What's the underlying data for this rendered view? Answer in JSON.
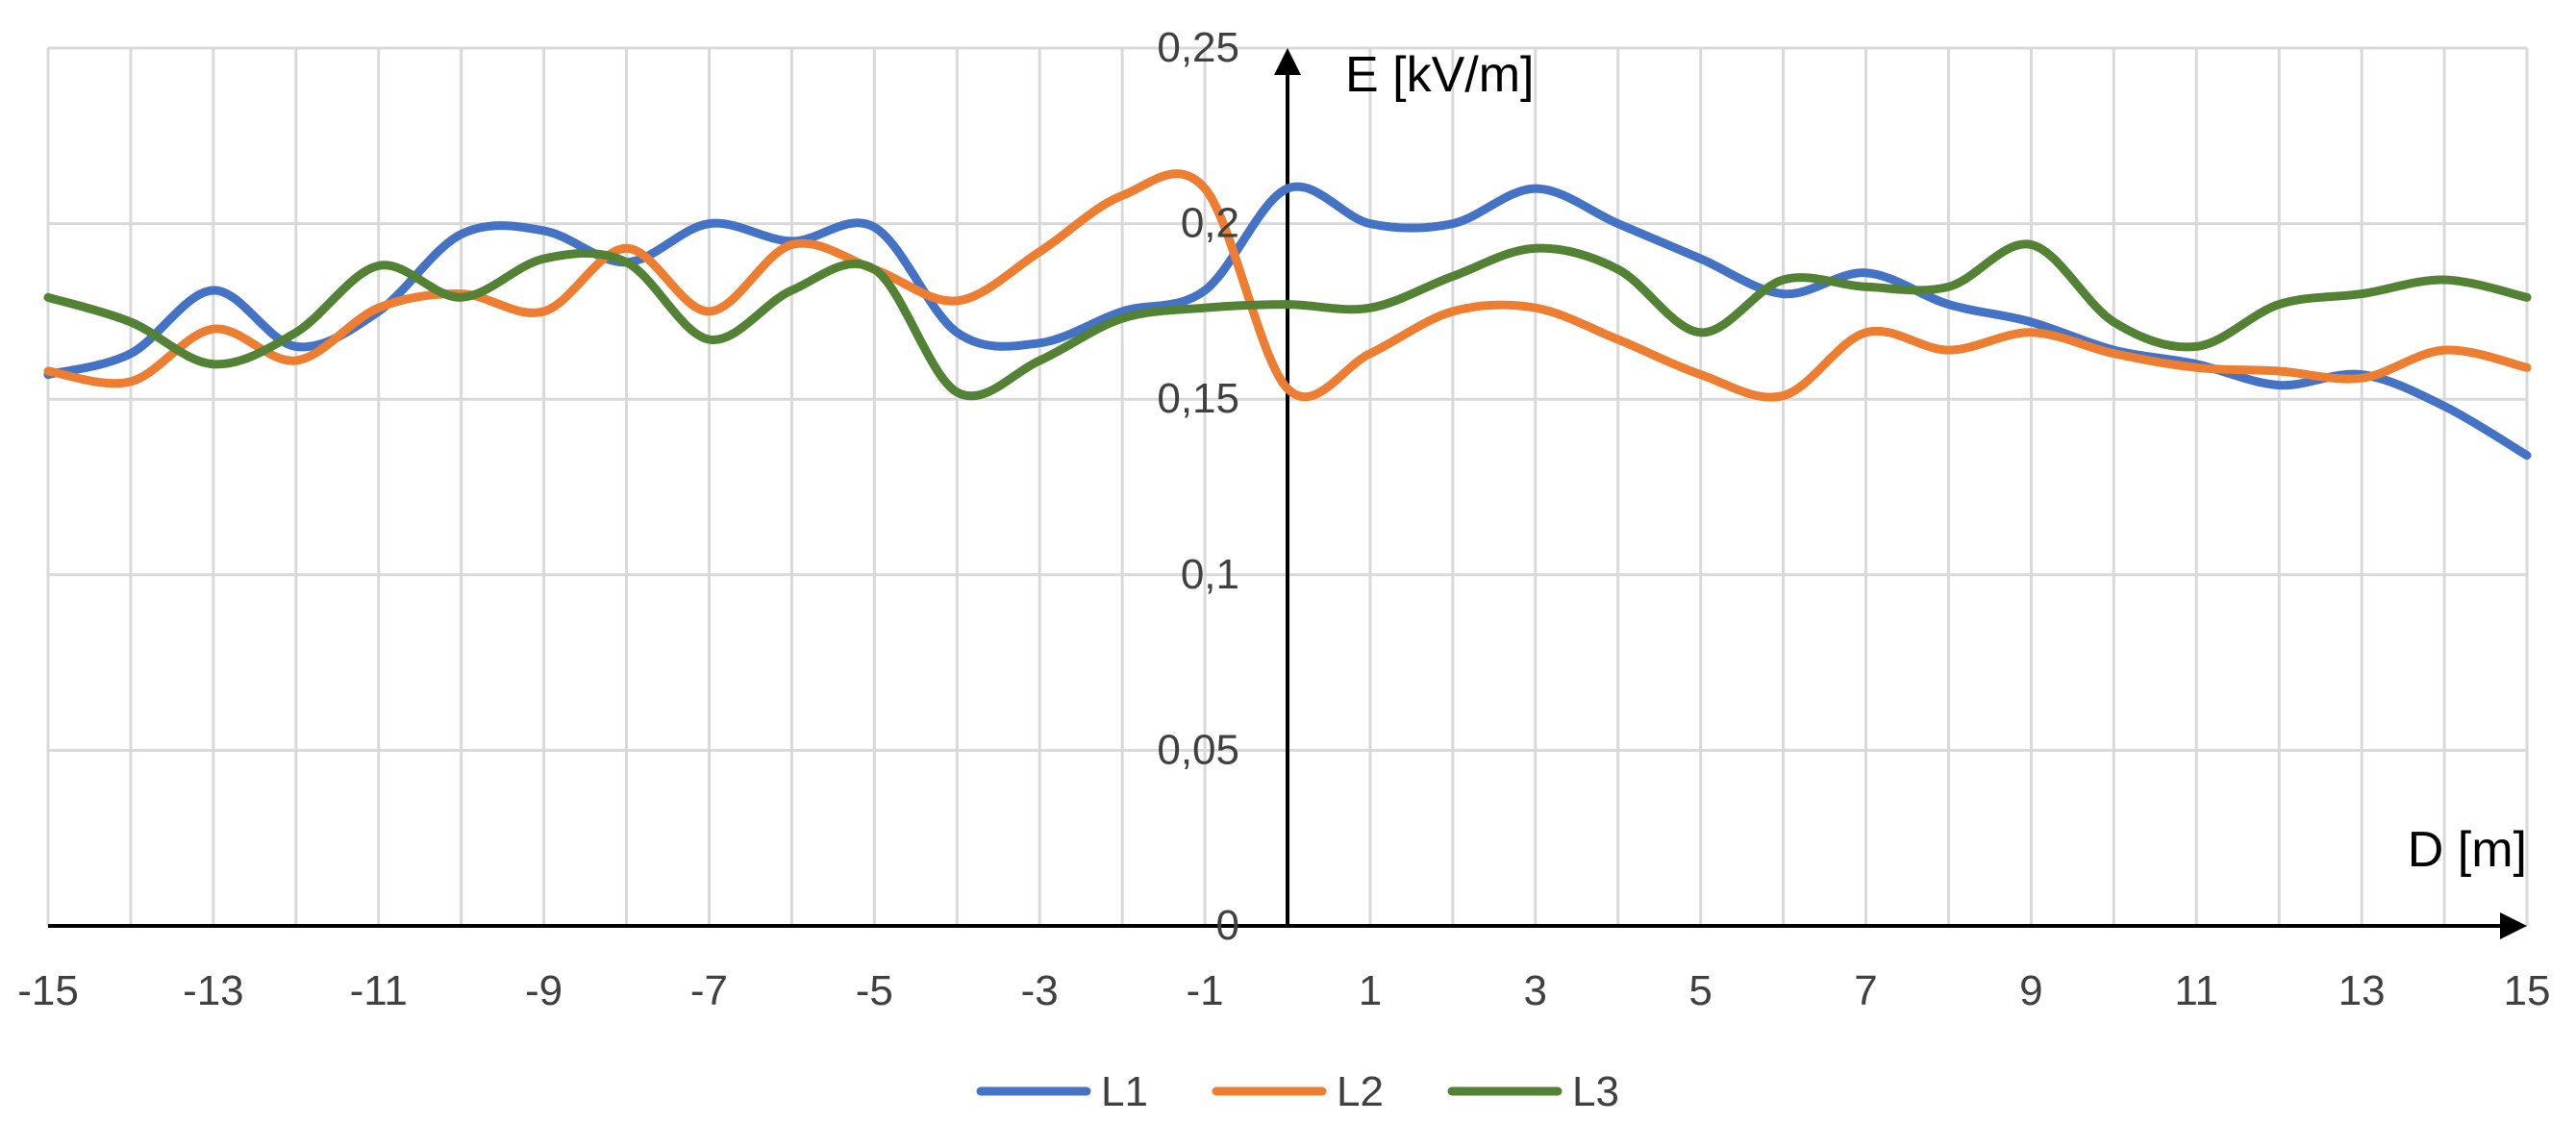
{
  "chart_data": {
    "type": "line",
    "title": "",
    "xlabel": "D [m]",
    "ylabel": "E [kV/m]",
    "xlim": [
      -15,
      15
    ],
    "ylim": [
      0,
      0.25
    ],
    "xticks": [
      -15,
      -13,
      -11,
      -9,
      -7,
      -5,
      -3,
      -1,
      1,
      3,
      5,
      7,
      9,
      11,
      13,
      15
    ],
    "xtick_labels": [
      "-15",
      "-13",
      "-11",
      "-9",
      "-7",
      "-5",
      "-3",
      "-1",
      "1",
      "3",
      "5",
      "7",
      "9",
      "11",
      "13",
      "15"
    ],
    "yticks": [
      0,
      0.05,
      0.1,
      0.15,
      0.2,
      0.25
    ],
    "ytick_labels": [
      "0",
      "0,05",
      "0,1",
      "0,15",
      "0,2",
      "0,25"
    ],
    "grid": true,
    "legend_position": "bottom",
    "x": [
      -15,
      -14,
      -13,
      -12,
      -11,
      -10,
      -9,
      -8,
      -7,
      -6,
      -5,
      -4,
      -3,
      -2,
      -1,
      0,
      1,
      2,
      3,
      4,
      5,
      6,
      7,
      8,
      9,
      10,
      11,
      12,
      13,
      14,
      15
    ],
    "series": [
      {
        "name": "L1",
        "color": "#4472c4",
        "values": [
          0.157,
          0.163,
          0.181,
          0.165,
          0.175,
          0.197,
          0.198,
          0.189,
          0.2,
          0.195,
          0.199,
          0.169,
          0.166,
          0.175,
          0.181,
          0.21,
          0.2,
          0.2,
          0.21,
          0.2,
          0.19,
          0.18,
          0.186,
          0.177,
          0.172,
          0.164,
          0.16,
          0.154,
          0.157,
          0.148,
          0.134
        ]
      },
      {
        "name": "L2",
        "color": "#ed7d31",
        "values": [
          0.158,
          0.155,
          0.17,
          0.161,
          0.176,
          0.18,
          0.175,
          0.193,
          0.175,
          0.194,
          0.187,
          0.178,
          0.192,
          0.208,
          0.21,
          0.153,
          0.163,
          0.175,
          0.176,
          0.167,
          0.157,
          0.151,
          0.169,
          0.164,
          0.169,
          0.163,
          0.159,
          0.158,
          0.156,
          0.164,
          0.159
        ]
      },
      {
        "name": "L3",
        "color": "#548235",
        "values": [
          0.179,
          0.172,
          0.16,
          0.169,
          0.188,
          0.179,
          0.19,
          0.189,
          0.167,
          0.181,
          0.187,
          0.152,
          0.161,
          0.173,
          0.176,
          0.177,
          0.176,
          0.185,
          0.193,
          0.187,
          0.169,
          0.184,
          0.182,
          0.182,
          0.194,
          0.172,
          0.165,
          0.177,
          0.18,
          0.184,
          0.179
        ]
      }
    ]
  }
}
